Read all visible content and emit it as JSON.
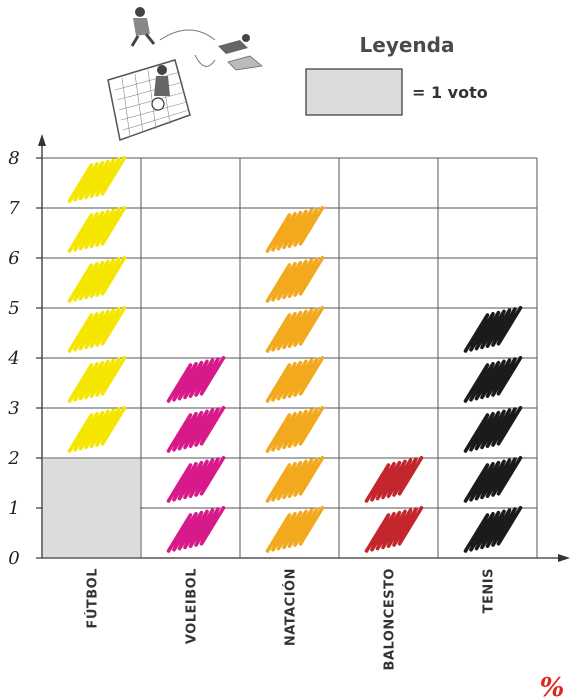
{
  "legend": {
    "title": "Leyenda",
    "unit_label": "= 1 voto",
    "swatch_color": "#dcdcdc"
  },
  "illustration": "soccer-players-icon",
  "corner_mark": "%",
  "chart_data": {
    "type": "pictograph",
    "title": "",
    "xlabel": "",
    "ylabel": "",
    "ylim": [
      0,
      8
    ],
    "yticks": [
      "0",
      "1",
      "2",
      "3",
      "4",
      "5",
      "6",
      "7",
      "8"
    ],
    "categories": [
      "FÚTBOL",
      "VOLEIBOL",
      "NATACIÓN",
      "BALONCESTO",
      "TENIS"
    ],
    "series": [
      {
        "values": [
          6,
          4,
          7,
          2,
          5
        ],
        "colors": [
          "#f5e600",
          "#d8198a",
          "#f3a91d",
          "#c4262d",
          "#1b1b1b"
        ]
      },
      {
        "values": [
          2,
          0,
          0,
          0,
          0
        ],
        "colors": [
          "#dcdcdc",
          "#dcdcdc",
          "#dcdcdc",
          "#dcdcdc",
          "#dcdcdc"
        ]
      }
    ],
    "grid": true
  }
}
